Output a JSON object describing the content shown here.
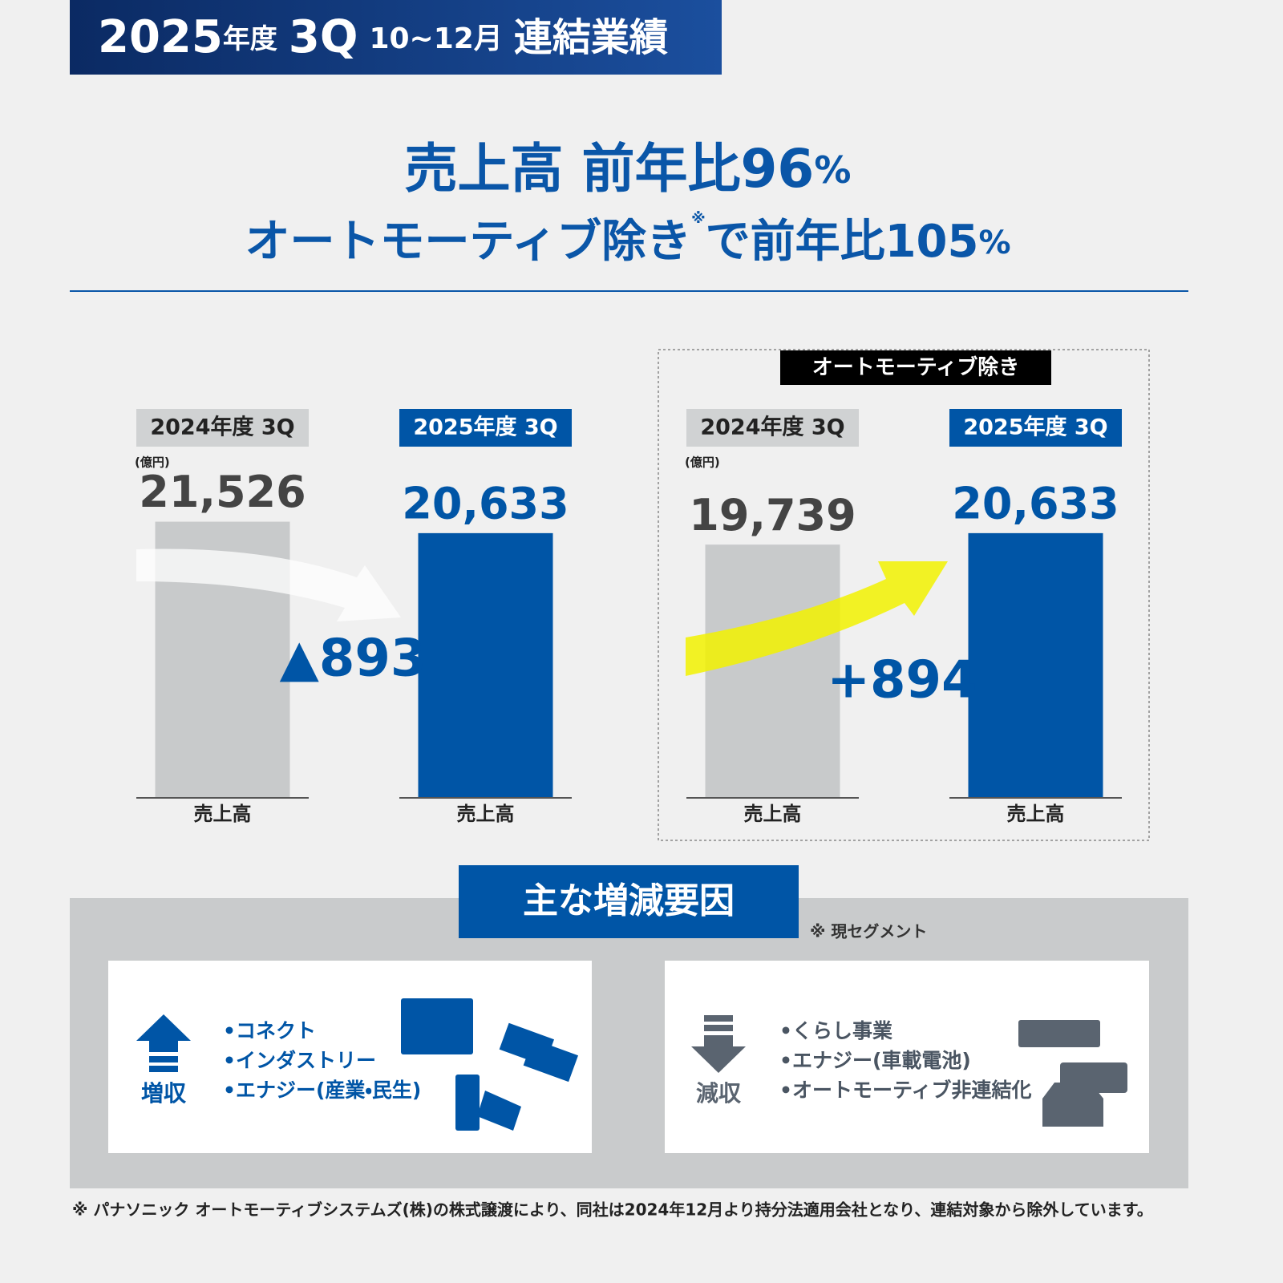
{
  "header": {
    "year": "2025",
    "year_unit": "年度",
    "quarter": "3Q",
    "months": "10~12月",
    "title": "連結業績"
  },
  "headline": {
    "line1": "売上高 前年比96",
    "line1_unit": "%",
    "line2_a": "オートモーティブ除き",
    "line2_mark": "※",
    "line2_b": "で前年比105",
    "line2_unit": "%"
  },
  "chart_data": [
    {
      "type": "bar",
      "categories": [
        "2024年度 3Q",
        "2025年度 3Q"
      ],
      "x_labels": [
        "売上高",
        "売上高"
      ],
      "unit": "(億円)",
      "values": [
        21526,
        20633
      ],
      "value_labels": [
        "21,526",
        "20,633"
      ],
      "colors": [
        "#c8cacb",
        "#0055a6"
      ],
      "ylim": [
        0,
        25000
      ],
      "change_label": "▲893"
    },
    {
      "type": "bar",
      "box_label": "オートモーティブ除き",
      "categories": [
        "2024年度 3Q",
        "2025年度 3Q"
      ],
      "x_labels": [
        "売上高",
        "売上高"
      ],
      "unit": "(億円)",
      "values": [
        19739,
        20633
      ],
      "value_labels": [
        "19,739",
        "20,633"
      ],
      "colors": [
        "#c8cacb",
        "#0055a6"
      ],
      "ylim": [
        0,
        25000
      ],
      "change_label": "+894"
    }
  ],
  "factors": {
    "title": "主な増減要因",
    "note": "※ 現セグメント",
    "increase": {
      "label": "増収",
      "items": [
        "•コネクト",
        "•インダストリー",
        "•エナジー(産業・民生)"
      ]
    },
    "decrease": {
      "label": "減収",
      "items": [
        "•くらし事業",
        "•エナジー(車載電池)",
        "•オートモーティブ非連結化"
      ]
    }
  },
  "footnote": "※ パナソニック オートモーティブシステムズ(株)の株式譲渡により、同社は2024年12月より持分法適用会社となり、連結対象から除外しています。"
}
